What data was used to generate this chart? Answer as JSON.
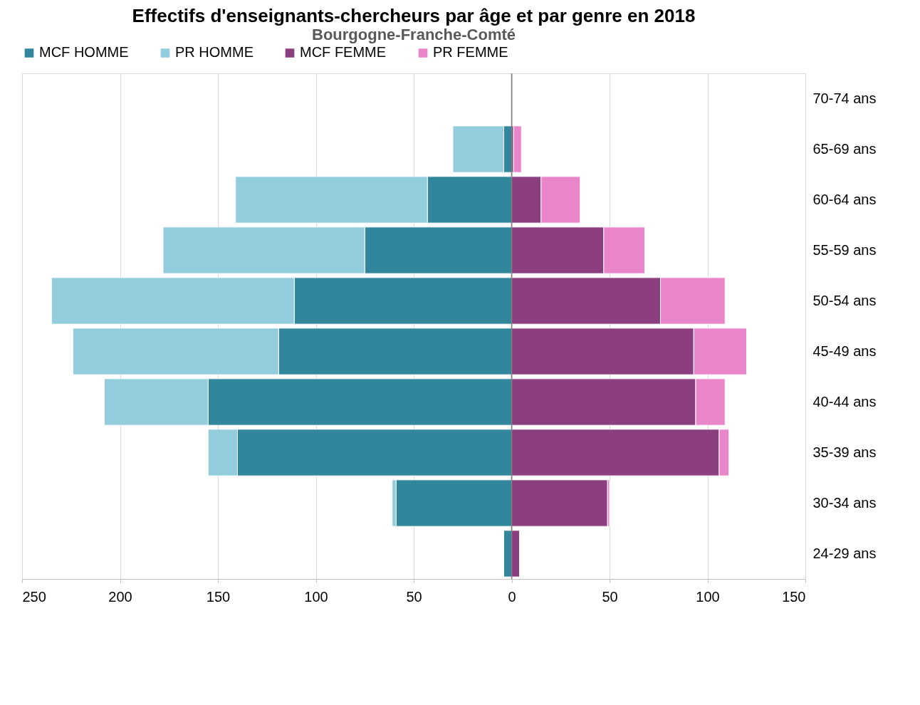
{
  "chart_data": {
    "type": "bar",
    "orientation": "horizontal",
    "stacked": true,
    "title": "Effectifs d'enseignants-chercheurs par âge et par genre en 2018",
    "subtitle": "Bourgogne-Franche-Comté",
    "categories": [
      "70-74 ans",
      "65-69 ans",
      "60-64 ans",
      "55-59 ans",
      "50-54 ans",
      "45-49 ans",
      "40-44 ans",
      "35-39 ans",
      "30-34 ans",
      "24-29 ans"
    ],
    "series": [
      {
        "name": "MCF HOMME",
        "color": "#31869b",
        "values": [
          null,
          -4,
          -43,
          -75,
          -111,
          -119,
          -155,
          -140,
          -59,
          -4
        ]
      },
      {
        "name": "PR HOMME",
        "color": "#93cddd",
        "values": [
          null,
          -26,
          -98,
          -103,
          -124,
          -105,
          -53,
          -15,
          -2,
          null
        ]
      },
      {
        "name": "MCF FEMME",
        "color": "#8b3f7f",
        "values": [
          null,
          1,
          15,
          47,
          76,
          93,
          94,
          106,
          49,
          4
        ]
      },
      {
        "name": "PR FEMME",
        "color": "#e986c9",
        "values": [
          null,
          4,
          20,
          21,
          33,
          27,
          15,
          5,
          1,
          null
        ]
      }
    ],
    "xlim": [
      -250,
      150
    ],
    "xticks": [
      {
        "value": -250,
        "label": "250"
      },
      {
        "value": -200,
        "label": "200"
      },
      {
        "value": -150,
        "label": "150"
      },
      {
        "value": -100,
        "label": "100"
      },
      {
        "value": -50,
        "label": "50"
      },
      0,
      50,
      100,
      150
    ],
    "ref_lines": [
      {
        "axis": "x",
        "value": 0,
        "label": null,
        "color": "#808080"
      }
    ],
    "grid": "x",
    "legend": "top"
  }
}
